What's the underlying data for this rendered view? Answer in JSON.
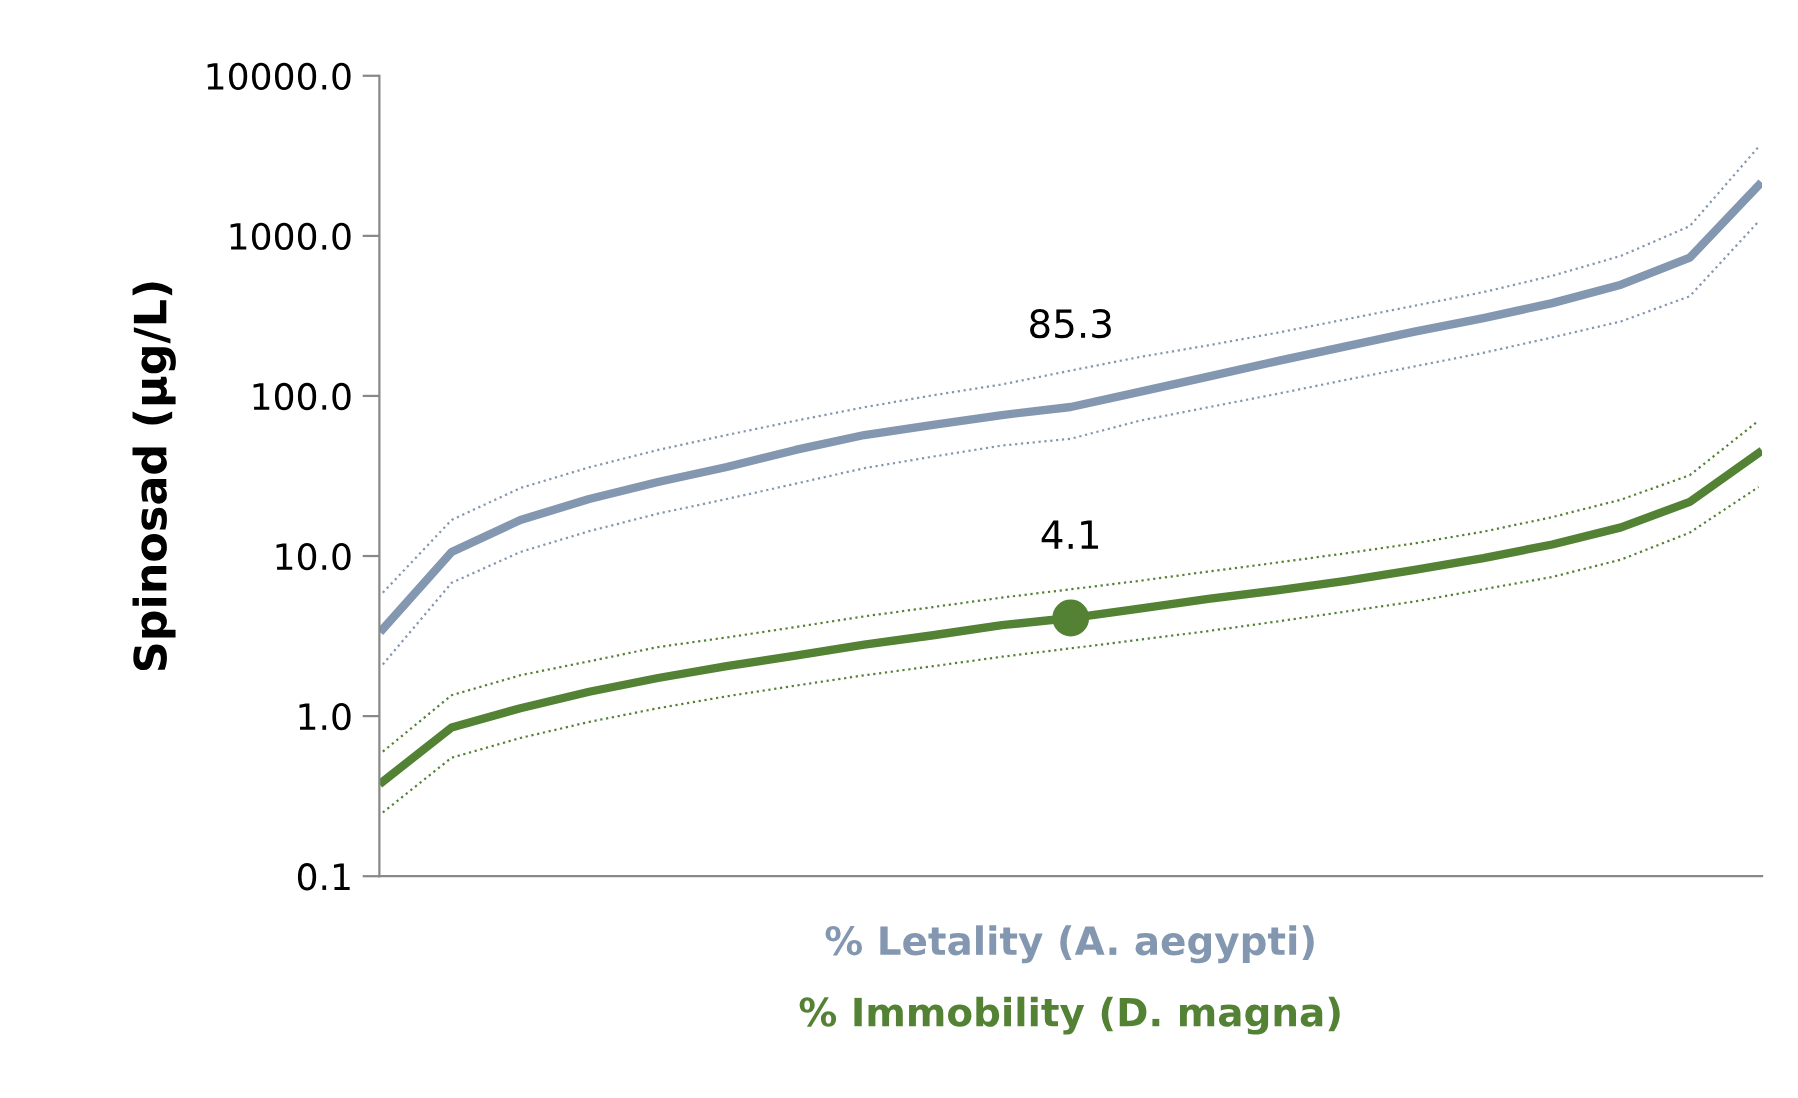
{
  "chart_data": {
    "type": "line",
    "ylabel": "Spinosad (µg/L)",
    "log": "y",
    "grid": false,
    "legend": "bottom",
    "tick_labels": "y",
    "categories": [
      null,
      null,
      null,
      null,
      null,
      null,
      null,
      null,
      null,
      null,
      null,
      null,
      null,
      null,
      null,
      null,
      null,
      null,
      null,
      null,
      null
    ],
    "ylim": [
      0.1,
      10000
    ],
    "yticks": [
      {
        "value": 0.1,
        "label": "0.1"
      },
      {
        "value": 1,
        "label": "1.0"
      },
      {
        "value": 10,
        "label": "10.0"
      },
      {
        "value": 100,
        "label": "100.0"
      },
      {
        "value": 1000,
        "label": "1000.0"
      },
      {
        "value": 10000,
        "label": "10000.0"
      }
    ],
    "series": [
      {
        "name": "% Letality (A. aegypti)",
        "color": "#8497b0",
        "values": [
          3.5,
          10.6,
          16.8,
          22.7,
          29,
          36,
          46,
          57,
          66,
          76,
          85.3,
          106,
          132,
          165,
          204,
          252,
          306,
          380,
          495,
          731,
          2070
        ]
      },
      {
        "color": "#8497b0",
        "line_style": "dotted",
        "values": [
          5.9,
          16.8,
          26.6,
          35.8,
          46,
          57,
          70,
          85,
          101,
          118,
          144,
          175,
          207,
          248,
          301,
          366,
          445,
          563,
          750,
          1150,
          3600
        ]
      },
      {
        "color": "#8497b0",
        "line_style": "dotted",
        "values": [
          2.1,
          6.8,
          10.6,
          14.3,
          18.4,
          22.7,
          28.3,
          35.4,
          41.8,
          49,
          54,
          70,
          85,
          103,
          126,
          153,
          186,
          232,
          292,
          420,
          1230
        ]
      },
      {
        "name": "% Immobility (D. magna)",
        "color": "#548235",
        "values": [
          0.39,
          0.85,
          1.12,
          1.42,
          1.73,
          2.05,
          2.39,
          2.8,
          3.2,
          3.7,
          4.1,
          4.7,
          5.4,
          6.1,
          7.0,
          8.2,
          9.7,
          11.8,
          15.1,
          21.8,
          44
        ]
      },
      {
        "color": "#548235",
        "line_style": "dotted",
        "values": [
          0.6,
          1.35,
          1.8,
          2.2,
          2.7,
          3.1,
          3.6,
          4.2,
          4.8,
          5.5,
          6.2,
          7.0,
          8.0,
          9.1,
          10.4,
          12,
          14.2,
          17.5,
          22.5,
          32,
          70
        ]
      },
      {
        "color": "#548235",
        "line_style": "dotted",
        "values": [
          0.25,
          0.55,
          0.73,
          0.92,
          1.12,
          1.33,
          1.55,
          1.8,
          2.05,
          2.35,
          2.65,
          3.0,
          3.4,
          3.9,
          4.5,
          5.2,
          6.2,
          7.4,
          9.5,
          14,
          27
        ]
      },
      {
        "type": "scatter",
        "marker": "circle",
        "color": "#548235",
        "values": [
          null,
          null,
          null,
          null,
          null,
          null,
          null,
          null,
          null,
          null,
          4.1,
          null,
          null,
          null,
          null,
          null,
          null,
          null,
          null,
          null,
          null
        ]
      }
    ],
    "annotations": [
      {
        "text": "85.3",
        "y": 85.3
      },
      {
        "text": "4.1",
        "y": 4.1
      }
    ]
  }
}
